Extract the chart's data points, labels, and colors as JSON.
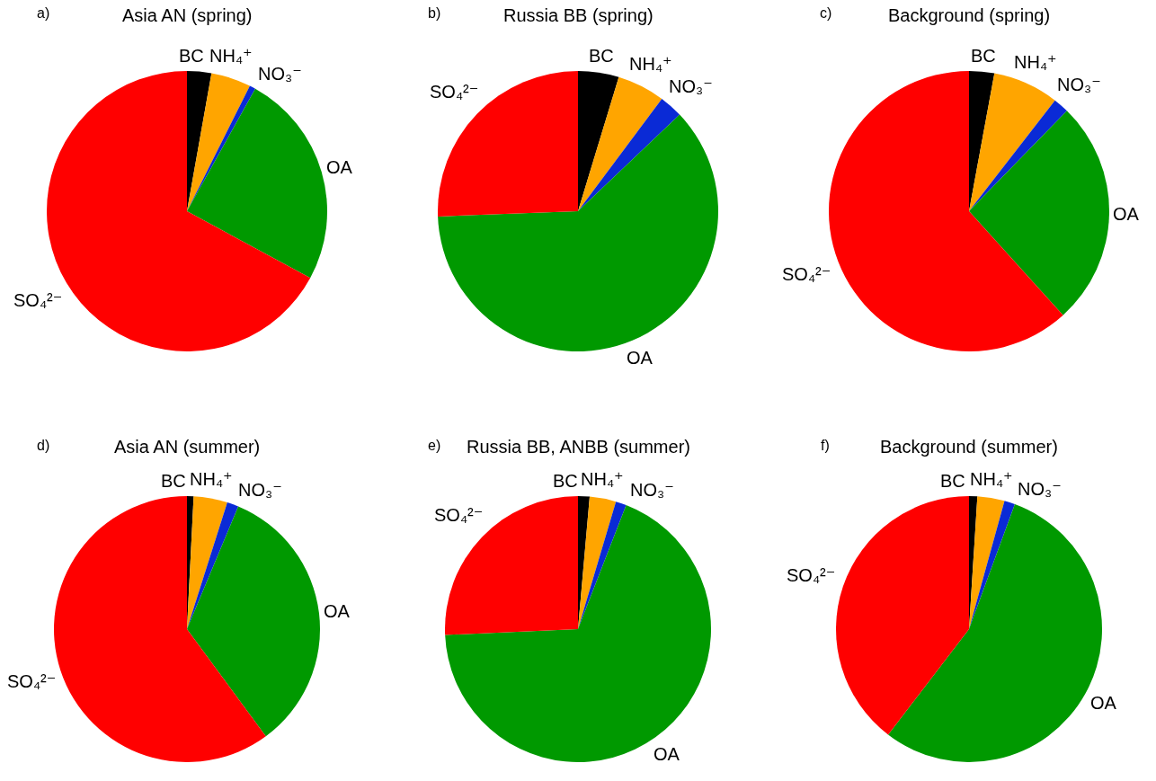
{
  "chart_data": [
    {
      "type": "pie",
      "title": "Asia AN (spring)",
      "annotations": [
        "a)"
      ],
      "categories": [
        "BC",
        "NH₄⁺",
        "NO₃⁻",
        "OA",
        "SO₄²⁻"
      ],
      "values": [
        2.8,
        4.6,
        0.7,
        24.8,
        67.1
      ],
      "colors": [
        "#000000",
        "#ffa500",
        "#0a2ad6",
        "#009900",
        "#ff0000"
      ]
    },
    {
      "type": "pie",
      "title": "Russia BB (spring)",
      "annotations": [
        "b)"
      ],
      "categories": [
        "BC",
        "NH₄⁺",
        "NO₃⁻",
        "OA",
        "SO₄²⁻"
      ],
      "values": [
        4.7,
        5.5,
        2.7,
        61.5,
        25.6
      ],
      "colors": [
        "#000000",
        "#ffa500",
        "#0a2ad6",
        "#009900",
        "#ff0000"
      ]
    },
    {
      "type": "pie",
      "title": "Background (spring)",
      "annotations": [
        "c)"
      ],
      "categories": [
        "BC",
        "NH₄⁺",
        "NO₃⁻",
        "OA",
        "SO₄²⁻"
      ],
      "values": [
        2.9,
        7.6,
        1.8,
        26.0,
        61.7
      ],
      "colors": [
        "#000000",
        "#ffa500",
        "#0a2ad6",
        "#009900",
        "#ff0000"
      ]
    },
    {
      "type": "pie",
      "title": "Asia AN (summer)",
      "annotations": [
        "d)"
      ],
      "categories": [
        "BC",
        "NH₄⁺",
        "NO₃⁻",
        "OA",
        "SO₄²⁻"
      ],
      "values": [
        0.8,
        4.1,
        1.4,
        33.6,
        60.1
      ],
      "colors": [
        "#000000",
        "#ffa500",
        "#0a2ad6",
        "#009900",
        "#ff0000"
      ]
    },
    {
      "type": "pie",
      "title": "Russia BB, ANBB (summer)",
      "annotations": [
        "e)"
      ],
      "categories": [
        "BC",
        "NH₄⁺",
        "NO₃⁻",
        "OA",
        "SO₄²⁻"
      ],
      "values": [
        1.4,
        3.2,
        1.3,
        68.4,
        25.7
      ],
      "colors": [
        "#000000",
        "#ffa500",
        "#0a2ad6",
        "#009900",
        "#ff0000"
      ]
    },
    {
      "type": "pie",
      "title": "Background (summer)",
      "annotations": [
        "f)"
      ],
      "categories": [
        "BC",
        "NH₄⁺",
        "NO₃⁻",
        "OA",
        "SO₄²⁻"
      ],
      "values": [
        1.0,
        3.3,
        1.3,
        54.8,
        39.6
      ],
      "colors": [
        "#000000",
        "#ffa500",
        "#0a2ad6",
        "#009900",
        "#ff0000"
      ]
    }
  ]
}
